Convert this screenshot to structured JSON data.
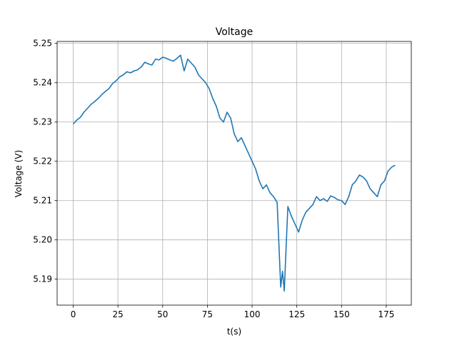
{
  "chart_data": {
    "type": "line",
    "title": "Voltage",
    "xlabel": "t(s)",
    "ylabel": "Voltage (V)",
    "xlim": [
      -9,
      189
    ],
    "ylim": [
      5.1834,
      5.2505
    ],
    "grid": true,
    "line_color": "#1f77b4",
    "x_ticks": [
      0,
      25,
      50,
      75,
      100,
      125,
      150,
      175
    ],
    "x_tick_labels": [
      "0",
      "25",
      "50",
      "75",
      "100",
      "125",
      "150",
      "175"
    ],
    "y_ticks": [
      5.19,
      5.2,
      5.21,
      5.22,
      5.23,
      5.24,
      5.25
    ],
    "y_tick_labels": [
      "5.19",
      "5.20",
      "5.21",
      "5.22",
      "5.23",
      "5.24",
      "5.25"
    ],
    "series": [
      {
        "x": [
          0,
          2,
          4,
          6,
          8,
          10,
          12,
          14,
          16,
          18,
          20,
          22,
          24,
          26,
          28,
          30,
          32,
          34,
          36,
          38,
          40,
          42,
          44,
          46,
          48,
          50,
          52,
          54,
          56,
          58,
          60,
          62,
          64,
          66,
          68,
          70,
          72,
          74,
          76,
          78,
          80,
          82,
          84,
          86,
          88,
          90,
          92,
          94,
          96,
          98,
          100,
          102,
          104,
          106,
          108,
          110,
          112,
          114,
          116,
          117,
          118,
          119,
          120,
          122,
          124,
          126,
          128,
          130,
          132,
          134,
          136,
          138,
          140,
          142,
          144,
          146,
          148,
          150,
          152,
          154,
          156,
          158,
          160,
          162,
          164,
          166,
          168,
          170,
          172,
          174,
          176,
          178,
          180
        ],
        "y": [
          5.2295,
          5.2305,
          5.2312,
          5.2325,
          5.2335,
          5.2345,
          5.2352,
          5.236,
          5.237,
          5.2378,
          5.2385,
          5.2398,
          5.2405,
          5.2415,
          5.242,
          5.2428,
          5.2425,
          5.243,
          5.2433,
          5.244,
          5.2452,
          5.2448,
          5.2445,
          5.246,
          5.2458,
          5.2465,
          5.2462,
          5.2458,
          5.2455,
          5.2462,
          5.247,
          5.243,
          5.246,
          5.245,
          5.244,
          5.242,
          5.241,
          5.24,
          5.2385,
          5.236,
          5.234,
          5.231,
          5.23,
          5.2325,
          5.231,
          5.227,
          5.225,
          5.226,
          5.224,
          5.222,
          5.22,
          5.218,
          5.215,
          5.213,
          5.214,
          5.212,
          5.211,
          5.2095,
          5.188,
          5.192,
          5.187,
          5.198,
          5.2085,
          5.206,
          5.204,
          5.202,
          5.205,
          5.207,
          5.208,
          5.209,
          5.211,
          5.21,
          5.2105,
          5.2098,
          5.2112,
          5.2108,
          5.2102,
          5.21,
          5.209,
          5.211,
          5.214,
          5.215,
          5.2165,
          5.216,
          5.215,
          5.213,
          5.212,
          5.211,
          5.214,
          5.215,
          5.2175,
          5.2185,
          5.219
        ]
      }
    ]
  }
}
